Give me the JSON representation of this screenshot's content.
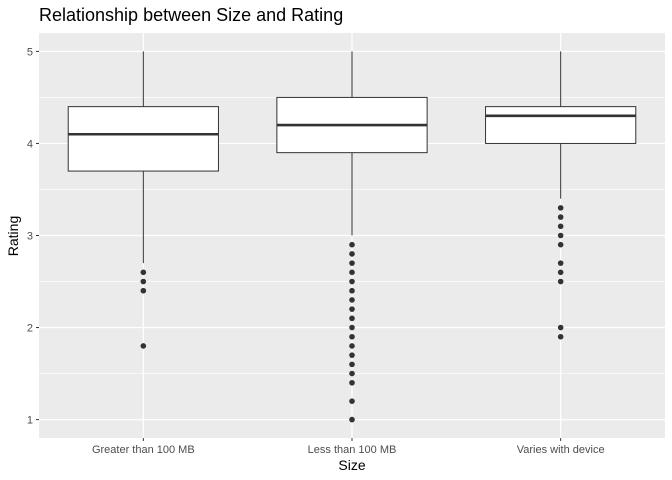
{
  "chart_data": {
    "type": "boxplot",
    "title": "Relationship between Size and Rating",
    "xlabel": "Size",
    "ylabel": "Rating",
    "categories": [
      "Greater than 100 MB",
      "Less than 100 MB",
      "Varies with device"
    ],
    "ylim": [
      0.8,
      5.2
    ],
    "yticks": [
      1,
      2,
      3,
      4,
      5
    ],
    "grid": true,
    "boxes": [
      {
        "category": "Greater than 100 MB",
        "whisker_low": 2.7,
        "q1": 3.7,
        "median": 4.1,
        "q3": 4.4,
        "whisker_high": 5.0,
        "outliers": [
          2.6,
          2.5,
          2.4,
          1.8
        ]
      },
      {
        "category": "Less than 100 MB",
        "whisker_low": 3.0,
        "q1": 3.9,
        "median": 4.2,
        "q3": 4.5,
        "whisker_high": 5.0,
        "outliers": [
          2.9,
          2.8,
          2.7,
          2.6,
          2.5,
          2.4,
          2.3,
          2.2,
          2.1,
          2.0,
          1.9,
          1.8,
          1.7,
          1.6,
          1.5,
          1.4,
          1.2,
          1.0
        ]
      },
      {
        "category": "Varies with device",
        "whisker_low": 3.4,
        "q1": 4.0,
        "median": 4.3,
        "q3": 4.4,
        "whisker_high": 5.0,
        "outliers": [
          3.3,
          3.2,
          3.1,
          3.0,
          2.9,
          2.7,
          2.6,
          2.5,
          2.0,
          1.9
        ]
      }
    ]
  },
  "colors": {
    "panel_background": "#ebebeb",
    "grid_major": "#ffffff",
    "box_fill": "#ffffff",
    "box_line": "#333333",
    "outlier": "#333333"
  }
}
